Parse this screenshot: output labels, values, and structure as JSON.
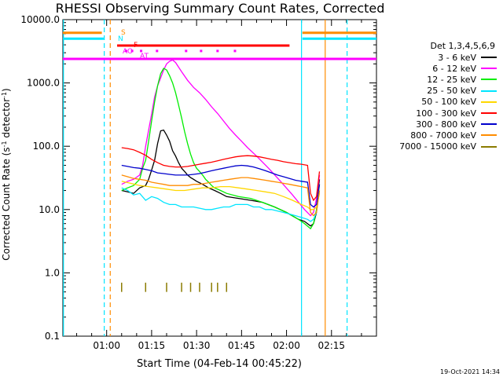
{
  "chart_data": {
    "type": "line",
    "title": "RHESSI Observing Summary Count Rates, Corrected",
    "xlabel": "Start Time (04-Feb-14 00:45:22)",
    "ylabel_main": "Corrected Count Rate (s",
    "ylabel_sup": "-1",
    "ylabel_end": " detector",
    "ylabel_sup2": "-1",
    "ylabel_close": ")",
    "y_scale": "log",
    "ylim": [
      0.1,
      10000
    ],
    "xlim_minutes": [
      45.4,
      150
    ],
    "x_ticks": [
      {
        "minute": 60,
        "label": "01:00"
      },
      {
        "minute": 75,
        "label": "01:15"
      },
      {
        "minute": 90,
        "label": "01:30"
      },
      {
        "minute": 105,
        "label": "01:45"
      },
      {
        "minute": 120,
        "label": "02:00"
      },
      {
        "minute": 135,
        "label": "02:15"
      }
    ],
    "y_ticks": [
      {
        "value": 10000,
        "label": "10000.0"
      },
      {
        "value": 1000,
        "label": "1000.0"
      },
      {
        "value": 100,
        "label": "100.0"
      },
      {
        "value": 10,
        "label": "10.0"
      },
      {
        "value": 1,
        "label": "1.0"
      },
      {
        "value": 0.1,
        "label": "0.1"
      }
    ],
    "legend_header": "Det 1,3,4,5,6,9",
    "legend_placement": "right",
    "timestamp": "19-Oct-2021 14:34",
    "series": [
      {
        "name": "3 - 6 keV",
        "color": "#000000",
        "x": [
          65,
          67,
          69,
          71,
          73,
          74,
          75,
          76,
          77,
          78,
          79,
          80,
          81,
          82,
          83,
          84,
          85,
          86,
          87,
          88,
          89,
          90,
          92,
          94,
          96,
          98,
          100,
          104,
          108,
          112,
          116,
          120,
          124,
          126,
          128,
          129,
          130,
          130.5,
          131
        ],
        "y": [
          20,
          19,
          18,
          22,
          24,
          30,
          42,
          60,
          110,
          175,
          180,
          150,
          120,
          85,
          70,
          55,
          45,
          40,
          35,
          32,
          30,
          28,
          25,
          22,
          20,
          18,
          16,
          15,
          14,
          13,
          11,
          9,
          7,
          6.5,
          5.5,
          6,
          9,
          20,
          30
        ]
      },
      {
        "name": "6 - 12 keV",
        "color": "#ff00ff",
        "x": [
          65,
          67,
          69,
          71,
          72,
          73,
          74,
          75,
          76,
          77,
          78,
          79,
          80,
          81,
          82,
          83,
          85,
          87,
          89,
          91,
          93,
          95,
          97,
          99,
          101,
          103,
          105,
          107,
          110,
          114,
          118,
          122,
          126,
          128,
          129,
          130,
          131
        ],
        "y": [
          25,
          28,
          30,
          35,
          50,
          100,
          180,
          320,
          600,
          900,
          1200,
          1600,
          2000,
          2200,
          2300,
          2100,
          1500,
          1100,
          850,
          700,
          550,
          420,
          330,
          250,
          190,
          150,
          120,
          95,
          70,
          45,
          28,
          17,
          10,
          8,
          9,
          15,
          35
        ]
      },
      {
        "name": "12 - 25 keV",
        "color": "#00ee00",
        "x": [
          65,
          67,
          69,
          71,
          72,
          73,
          74,
          75,
          76,
          77,
          78,
          79,
          80,
          81,
          82,
          83,
          84,
          85,
          86,
          87,
          88,
          89,
          90,
          91,
          92,
          93,
          94,
          95,
          96,
          98,
          100,
          104,
          108,
          112,
          116,
          120,
          124,
          126,
          128,
          129,
          130,
          131
        ],
        "y": [
          20,
          22,
          24,
          30,
          45,
          60,
          120,
          250,
          500,
          900,
          1400,
          1700,
          1600,
          1300,
          1000,
          700,
          450,
          280,
          170,
          110,
          75,
          55,
          45,
          40,
          35,
          30,
          27,
          24,
          22,
          20,
          18,
          16,
          15,
          13,
          11,
          9,
          7,
          6,
          5,
          6,
          10,
          25
        ]
      },
      {
        "name": "25 - 50 keV",
        "color": "#00e5ff",
        "x": [
          65,
          67,
          69,
          71,
          73,
          75,
          77,
          79,
          81,
          83,
          85,
          87,
          89,
          91,
          93,
          95,
          97,
          99,
          101,
          103,
          105,
          107,
          109,
          111,
          113,
          115,
          117,
          119,
          121,
          123,
          125,
          127,
          128,
          129,
          130,
          131
        ],
        "y": [
          22,
          20,
          17,
          18,
          14,
          16,
          15,
          13,
          12,
          12,
          11,
          11,
          11,
          10.5,
          10,
          10,
          10.5,
          11,
          11,
          12,
          12,
          12,
          11,
          11,
          10,
          10,
          9.5,
          9,
          8.5,
          8,
          7.5,
          7,
          6.5,
          7,
          9,
          20
        ]
      },
      {
        "name": "50 - 100 keV",
        "color": "#ffd700",
        "x": [
          65,
          68,
          71,
          74,
          77,
          80,
          83,
          86,
          89,
          92,
          95,
          98,
          101,
          104,
          107,
          110,
          113,
          116,
          119,
          122,
          125,
          127,
          128,
          129,
          130,
          131
        ],
        "y": [
          28,
          26,
          24,
          23,
          22,
          21,
          20,
          20,
          21,
          22,
          22,
          23,
          23,
          22,
          21,
          20,
          19,
          18,
          16,
          14,
          12,
          11,
          10,
          10,
          11,
          18
        ]
      },
      {
        "name": "100 - 300 keV",
        "color": "#ff0000",
        "x": [
          65,
          67,
          69,
          71,
          73,
          75,
          77,
          79,
          81,
          83,
          85,
          87,
          89,
          91,
          93,
          95,
          97,
          99,
          101,
          103,
          105,
          107,
          109,
          111,
          113,
          115,
          117,
          119,
          121,
          123,
          125,
          127,
          128,
          129,
          130,
          131
        ],
        "y": [
          95,
          92,
          88,
          80,
          72,
          62,
          55,
          50,
          48,
          47,
          47,
          48,
          50,
          52,
          54,
          56,
          59,
          62,
          65,
          68,
          70,
          71,
          70,
          68,
          65,
          62,
          60,
          57,
          55,
          53,
          52,
          50,
          18,
          14,
          16,
          40
        ]
      },
      {
        "name": "300 - 800 keV",
        "color": "#0000cc",
        "x": [
          65,
          67,
          69,
          71,
          73,
          75,
          77,
          79,
          81,
          83,
          85,
          87,
          89,
          91,
          93,
          95,
          97,
          99,
          101,
          103,
          105,
          107,
          109,
          111,
          113,
          115,
          117,
          119,
          121,
          123,
          125,
          127,
          128,
          129,
          130,
          131
        ],
        "y": [
          50,
          48,
          46,
          45,
          43,
          41,
          38,
          37,
          36,
          35,
          35,
          35,
          36,
          37,
          39,
          41,
          43,
          45,
          47,
          49,
          50,
          49,
          47,
          44,
          41,
          38,
          35,
          33,
          31,
          29,
          28,
          27,
          12,
          11,
          12,
          25
        ]
      },
      {
        "name": "800 - 7000 keV",
        "color": "#ff8c00",
        "x": [
          65,
          67,
          69,
          71,
          73,
          75,
          77,
          79,
          81,
          83,
          85,
          87,
          89,
          91,
          93,
          95,
          97,
          99,
          101,
          103,
          105,
          107,
          109,
          111,
          113,
          115,
          117,
          119,
          121,
          123,
          125,
          127,
          128,
          129,
          130,
          131
        ],
        "y": [
          35,
          33,
          31,
          30,
          29,
          27,
          26,
          25,
          24,
          24,
          24,
          24,
          25,
          25,
          26,
          27,
          28,
          29,
          30,
          31,
          32,
          32,
          31,
          30,
          29,
          28,
          27,
          26,
          25,
          24,
          23,
          22,
          9,
          8,
          9,
          20
        ]
      },
      {
        "name": "7000 - 15000 keV",
        "color": "#8b7b00",
        "spikes": [
          65,
          73,
          80,
          85,
          88,
          91,
          95,
          97,
          100
        ],
        "spike_range": [
          0.5,
          0.7
        ]
      }
    ],
    "vertical_lines": [
      {
        "minute": 45.6,
        "color": "#00e5ff",
        "style": "solid"
      },
      {
        "minute": 59.2,
        "color": "#00e5ff",
        "style": "dashed"
      },
      {
        "minute": 61.2,
        "color": "#ff8c00",
        "style": "dashed"
      },
      {
        "minute": 125.0,
        "color": "#00e5ff",
        "style": "solid"
      },
      {
        "minute": 132.9,
        "color": "#ff8c00",
        "style": "solid"
      },
      {
        "minute": 140.2,
        "color": "#00e5ff",
        "style": "dashed"
      }
    ],
    "flag_bars": [
      {
        "label": "S",
        "color": "#ff8c00",
        "value": 6200,
        "segments": [
          [
            45.4,
            58.4
          ],
          [
            125.3,
            150
          ]
        ]
      },
      {
        "label": "N",
        "color": "#00e5ff",
        "value": 5000,
        "segments": [
          [
            45.4,
            59.0
          ],
          [
            125.3,
            150
          ]
        ]
      },
      {
        "label": "F",
        "color": "#ff0000",
        "value": 3900,
        "segments": [
          [
            63.5,
            121.0
          ]
        ]
      },
      {
        "label": "AO",
        "color": "#ff00ff",
        "value": 3200,
        "dots": [
          66.5,
          68.5,
          71.5,
          76.8,
          86.5,
          91.5,
          97.0,
          102.8
        ]
      },
      {
        "label": "AT",
        "color": "#ff00ff",
        "value": 2400,
        "segments": [
          [
            45.4,
            150
          ]
        ]
      }
    ]
  }
}
